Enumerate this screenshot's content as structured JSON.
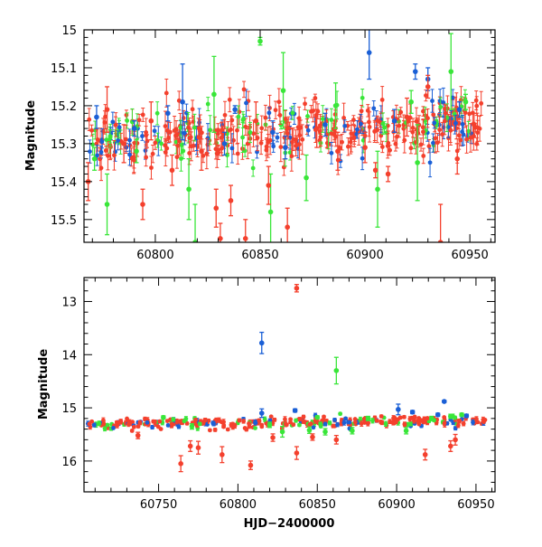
{
  "chart_data": [
    {
      "type": "scatter",
      "title": "",
      "xlabel": "",
      "ylabel": "Magnitude",
      "xlim": [
        60766,
        60962
      ],
      "ylim": [
        15.56,
        15.0
      ],
      "y_inverted": true,
      "grid": false,
      "x_ticks": [
        60800,
        60850,
        60900,
        60950
      ],
      "y_ticks": [
        15,
        15.1,
        15.2,
        15.3,
        15.4,
        15.5
      ],
      "x_tick_labels": [
        "60800",
        "60850",
        "60900",
        "60950"
      ],
      "y_tick_labels": [
        "15",
        "15.1",
        "15.2",
        "15.3",
        "15.4",
        "15.5"
      ],
      "series": [
        {
          "name": "blue",
          "color": "#1a5fd6",
          "points": [
            {
              "x": 60772,
              "y": 15.23,
              "err": 0.03
            },
            {
              "x": 60790,
              "y": 15.26,
              "err": 0.02
            },
            {
              "x": 60806,
              "y": 15.22,
              "err": 0.02
            },
            {
              "x": 60813,
              "y": 15.19,
              "err": 0.1
            },
            {
              "x": 60833,
              "y": 15.3,
              "err": 0.03
            },
            {
              "x": 60838,
              "y": 15.21,
              "err": 0.01
            },
            {
              "x": 60856,
              "y": 15.27,
              "err": 0.03
            },
            {
              "x": 60862,
              "y": 15.31,
              "err": 0.03
            },
            {
              "x": 60881,
              "y": 15.25,
              "err": 0.03
            },
            {
              "x": 60902,
              "y": 15.06,
              "err": 0.07
            },
            {
              "x": 60914,
              "y": 15.24,
              "err": 0.03
            },
            {
              "x": 60924,
              "y": 15.11,
              "err": 0.02
            },
            {
              "x": 60930,
              "y": 15.13,
              "err": 0.03
            },
            {
              "x": 60945,
              "y": 15.21,
              "err": 0.02
            }
          ]
        },
        {
          "name": "green",
          "color": "#39e639",
          "points": [
            {
              "x": 60771,
              "y": 15.34,
              "err": 0.03
            },
            {
              "x": 60777,
              "y": 15.46,
              "err": 0.08
            },
            {
              "x": 60791,
              "y": 15.32,
              "err": 0.03
            },
            {
              "x": 60816,
              "y": 15.42,
              "err": 0.08
            },
            {
              "x": 60819,
              "y": 15.56,
              "err": 0.1
            },
            {
              "x": 60828,
              "y": 15.17,
              "err": 0.1
            },
            {
              "x": 60850,
              "y": 15.03,
              "err": 0.01
            },
            {
              "x": 60855,
              "y": 15.48,
              "err": 0.1
            },
            {
              "x": 60861,
              "y": 15.16,
              "err": 0.1
            },
            {
              "x": 60872,
              "y": 15.39,
              "err": 0.06
            },
            {
              "x": 60886,
              "y": 15.2,
              "err": 0.06
            },
            {
              "x": 60906,
              "y": 15.42,
              "err": 0.1
            },
            {
              "x": 60922,
              "y": 15.19,
              "err": 0.03
            },
            {
              "x": 60925,
              "y": 15.35,
              "err": 0.1
            },
            {
              "x": 60941,
              "y": 15.11,
              "err": 0.1
            },
            {
              "x": 60948,
              "y": 15.19,
              "err": 0.02
            }
          ]
        },
        {
          "name": "red",
          "color": "#f4402d",
          "points": [
            {
              "x": 60768,
              "y": 15.4,
              "err": 0.05
            },
            {
              "x": 60777,
              "y": 15.21,
              "err": 0.06
            },
            {
              "x": 60785,
              "y": 15.3,
              "err": 0.05
            },
            {
              "x": 60794,
              "y": 15.46,
              "err": 0.04
            },
            {
              "x": 60798,
              "y": 15.24,
              "err": 0.05
            },
            {
              "x": 60808,
              "y": 15.37,
              "err": 0.04
            },
            {
              "x": 60822,
              "y": 15.32,
              "err": 0.05
            },
            {
              "x": 60829,
              "y": 15.47,
              "err": 0.05
            },
            {
              "x": 60831,
              "y": 15.55,
              "err": 0.04
            },
            {
              "x": 60836,
              "y": 15.45,
              "err": 0.04
            },
            {
              "x": 60843,
              "y": 15.55,
              "err": 0.05
            },
            {
              "x": 60848,
              "y": 15.24,
              "err": 0.05
            },
            {
              "x": 60854,
              "y": 15.41,
              "err": 0.05
            },
            {
              "x": 60863,
              "y": 15.52,
              "err": 0.05
            },
            {
              "x": 60877,
              "y": 15.26,
              "err": 0.05
            },
            {
              "x": 60887,
              "y": 15.32,
              "err": 0.05
            },
            {
              "x": 60900,
              "y": 15.31,
              "err": 0.04
            },
            {
              "x": 60905,
              "y": 15.37,
              "err": 0.02
            },
            {
              "x": 60911,
              "y": 15.38,
              "err": 0.02
            },
            {
              "x": 60920,
              "y": 15.23,
              "err": 0.05
            },
            {
              "x": 60930,
              "y": 15.15,
              "err": 0.03
            },
            {
              "x": 60936,
              "y": 15.56,
              "err": 0.1
            },
            {
              "x": 60944,
              "y": 15.34,
              "err": 0.04
            },
            {
              "x": 60952,
              "y": 15.25,
              "err": 0.03
            }
          ]
        }
      ]
    },
    {
      "type": "scatter",
      "title": "",
      "xlabel": "HJD−2400000",
      "ylabel": "Magnitude",
      "xlim": [
        60703,
        60962
      ],
      "ylim": [
        16.58,
        12.55
      ],
      "y_inverted": true,
      "grid": false,
      "x_ticks": [
        60750,
        60800,
        60850,
        60900,
        60950
      ],
      "y_ticks": [
        13,
        14,
        15,
        16
      ],
      "x_tick_labels": [
        "60750",
        "60800",
        "60850",
        "60900",
        "60950"
      ],
      "y_tick_labels": [
        "13",
        "14",
        "15",
        "16"
      ],
      "series": [
        {
          "name": "blue",
          "color": "#1a5fd6",
          "points": [
            {
              "x": 60815,
              "y": 13.78,
              "err": 0.2
            },
            {
              "x": 60815,
              "y": 15.1,
              "err": 0.08
            },
            {
              "x": 60836,
              "y": 15.05,
              "err": 0.03
            },
            {
              "x": 60901,
              "y": 15.03,
              "err": 0.1
            },
            {
              "x": 60910,
              "y": 15.08,
              "err": 0.03
            },
            {
              "x": 60926,
              "y": 15.13,
              "err": 0.03
            },
            {
              "x": 60930,
              "y": 14.88,
              "err": 0.02
            },
            {
              "x": 60944,
              "y": 15.15,
              "err": 0.03
            }
          ]
        },
        {
          "name": "green",
          "color": "#39e639",
          "points": [
            {
              "x": 60753,
              "y": 15.18,
              "err": 0.03
            },
            {
              "x": 60771,
              "y": 15.35,
              "err": 0.05
            },
            {
              "x": 60820,
              "y": 15.32,
              "err": 0.05
            },
            {
              "x": 60828,
              "y": 15.45,
              "err": 0.1
            },
            {
              "x": 60845,
              "y": 15.42,
              "err": 0.06
            },
            {
              "x": 60850,
              "y": 15.18,
              "err": 0.03
            },
            {
              "x": 60855,
              "y": 15.45,
              "err": 0.06
            },
            {
              "x": 60862,
              "y": 14.3,
              "err": 0.25
            },
            {
              "x": 60872,
              "y": 15.43,
              "err": 0.06
            },
            {
              "x": 60882,
              "y": 15.2,
              "err": 0.04
            },
            {
              "x": 60906,
              "y": 15.43,
              "err": 0.06
            },
            {
              "x": 60922,
              "y": 15.2,
              "err": 0.04
            },
            {
              "x": 60934,
              "y": 15.16,
              "err": 0.04
            },
            {
              "x": 60941,
              "y": 15.13,
              "err": 0.03
            }
          ]
        },
        {
          "name": "red",
          "color": "#f4402d",
          "points": [
            {
              "x": 60737,
              "y": 15.52,
              "err": 0.06
            },
            {
              "x": 60764,
              "y": 16.05,
              "err": 0.15
            },
            {
              "x": 60770,
              "y": 15.72,
              "err": 0.1
            },
            {
              "x": 60775,
              "y": 15.75,
              "err": 0.12
            },
            {
              "x": 60790,
              "y": 15.88,
              "err": 0.15
            },
            {
              "x": 60808,
              "y": 16.08,
              "err": 0.08
            },
            {
              "x": 60822,
              "y": 15.56,
              "err": 0.07
            },
            {
              "x": 60837,
              "y": 12.75,
              "err": 0.07
            },
            {
              "x": 60837,
              "y": 15.85,
              "err": 0.12
            },
            {
              "x": 60847,
              "y": 15.55,
              "err": 0.06
            },
            {
              "x": 60862,
              "y": 15.6,
              "err": 0.08
            },
            {
              "x": 60918,
              "y": 15.88,
              "err": 0.1
            },
            {
              "x": 60934,
              "y": 15.72,
              "err": 0.1
            },
            {
              "x": 60937,
              "y": 15.6,
              "err": 0.1
            }
          ]
        }
      ]
    }
  ]
}
